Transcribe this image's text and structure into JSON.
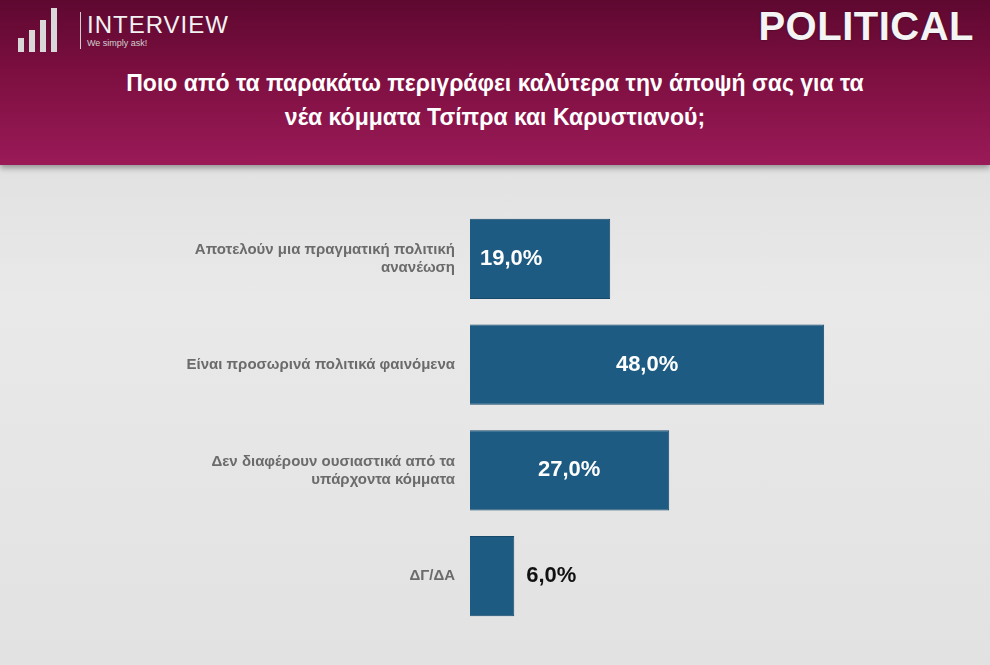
{
  "header": {
    "brand": "INTERVIEW",
    "tagline": "We simply ask!",
    "publication": "POLITICAL"
  },
  "chart_data": {
    "type": "bar",
    "orientation": "horizontal",
    "title": "Ποιο από τα παρακάτω περιγράφει καλύτερα την άποψή σας για τα νέα κόμματα Τσίπρα και Καρυστιανού;",
    "categories": [
      "Αποτελούν μια πραγματική πολιτική ανανέωση",
      "Είναι προσωρινά πολιτικά φαινόμενα",
      "Δεν διαφέρουν ουσιαστικά από τα υπάρχοντα κόμματα",
      "ΔΓ/ΔΑ"
    ],
    "values": [
      19,
      48,
      27,
      6
    ],
    "value_labels": [
      "19,0%",
      "48,0%",
      "27,0%",
      "6,0%"
    ],
    "color": "#1d5b82",
    "data_labels": true,
    "tick_labels": "y",
    "grid": false
  }
}
